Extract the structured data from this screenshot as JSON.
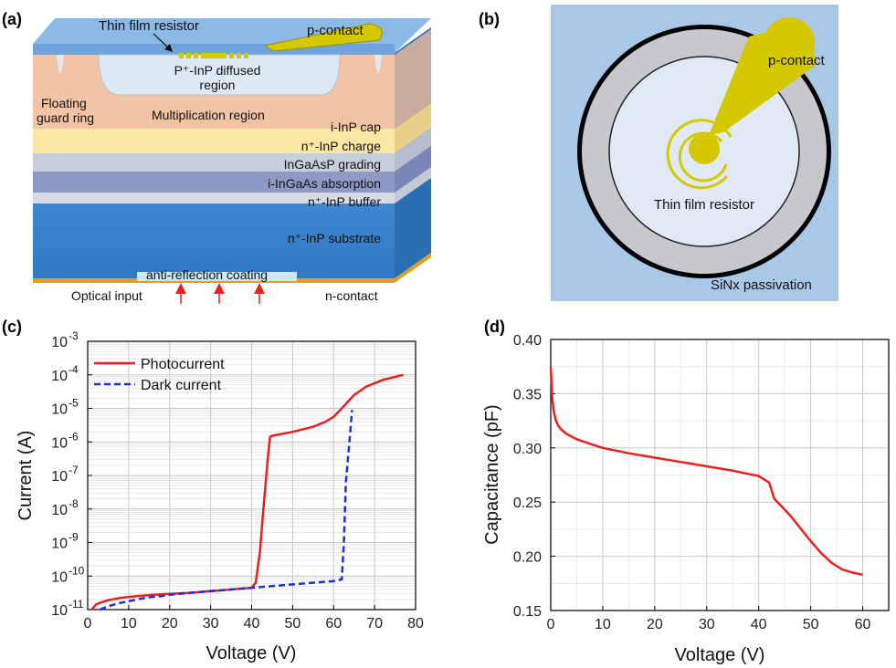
{
  "panels": {
    "a": "(a)",
    "b": "(b)",
    "c": "(c)",
    "d": "(d)"
  },
  "device_a": {
    "thin_film_resistor": "Thin film resistor",
    "p_contact": "p-contact",
    "diffused_region_1": "P⁺-InP diffused",
    "diffused_region_2": "region",
    "floating_guard_1": "Floating",
    "floating_guard_2": "guard ring",
    "multiplication": "Multiplication region",
    "cap": "i-InP cap",
    "charge": "n⁺-InP charge",
    "grading": "InGaAsP grading",
    "absorption": "i-InGaAs absorption",
    "buffer": "n⁺-InP buffer",
    "substrate": "n⁺-InP substrate",
    "arc": "anti-reflection coating",
    "optical_input": "Optical input",
    "n_contact": "n-contact"
  },
  "device_b": {
    "p_contact": "p-contact",
    "thin_film_resistor": "Thin film resistor",
    "passivation": "SiNx passivation"
  },
  "colors": {
    "photocurrent": "#e8201e",
    "dark": "#1f2ed8",
    "capacitance": "#e8201e",
    "contact": "#d4c800",
    "sky": "#a9c8e8"
  },
  "chart_data": [
    {
      "type": "line",
      "panel": "(c)",
      "xlabel": "Voltage (V)",
      "ylabel": "Current (A)",
      "yscale": "log",
      "xlim": [
        0,
        80
      ],
      "ylim_exp": [
        -11,
        -3
      ],
      "x_ticks": [
        "0",
        "10",
        "20",
        "30",
        "40",
        "50",
        "60",
        "70",
        "80"
      ],
      "y_ticks": [
        {
          "base": "10",
          "exp": "-11"
        },
        {
          "base": "10",
          "exp": "-10"
        },
        {
          "base": "10",
          "exp": "-9"
        },
        {
          "base": "10",
          "exp": "-8"
        },
        {
          "base": "10",
          "exp": "-7"
        },
        {
          "base": "10",
          "exp": "-6"
        },
        {
          "base": "10",
          "exp": "-5"
        },
        {
          "base": "10",
          "exp": "-4"
        },
        {
          "base": "10",
          "exp": "-3"
        }
      ],
      "legend": {
        "position": "top-left",
        "entries": [
          "Photocurrent",
          "Dark current"
        ]
      },
      "series": [
        {
          "name": "Photocurrent",
          "style": "solid",
          "x": [
            1.0,
            2,
            3,
            5,
            8,
            12,
            16,
            20,
            25,
            30,
            35,
            40,
            41,
            42,
            43,
            44,
            44.5,
            45,
            50,
            55,
            58,
            60,
            62,
            65,
            68,
            72,
            77
          ],
          "log10_y": [
            -11.0,
            -10.85,
            -10.8,
            -10.72,
            -10.65,
            -10.6,
            -10.56,
            -10.53,
            -10.5,
            -10.45,
            -10.4,
            -10.35,
            -10.2,
            -9.3,
            -7.8,
            -6.4,
            -5.85,
            -5.82,
            -5.7,
            -5.55,
            -5.4,
            -5.25,
            -5.0,
            -4.6,
            -4.35,
            -4.15,
            -4.0
          ]
        },
        {
          "name": "Dark current",
          "style": "dashed",
          "x": [
            3,
            5,
            8,
            10,
            12,
            14,
            16,
            18,
            20,
            25,
            30,
            35,
            40,
            45,
            50,
            55,
            60,
            62,
            62.5,
            63,
            64,
            64.5
          ],
          "log10_y": [
            -11.0,
            -10.9,
            -10.8,
            -10.75,
            -10.7,
            -10.65,
            -10.62,
            -10.6,
            -10.56,
            -10.5,
            -10.45,
            -10.4,
            -10.35,
            -10.3,
            -10.25,
            -10.2,
            -10.15,
            -10.1,
            -9.0,
            -7.2,
            -5.8,
            -5.05
          ]
        }
      ]
    },
    {
      "type": "line",
      "panel": "(d)",
      "xlabel": "Voltage (V)",
      "ylabel": "Capacitance (pF)",
      "xlim": [
        0,
        65
      ],
      "ylim": [
        0.15,
        0.4
      ],
      "x_ticks": [
        "0",
        "10",
        "20",
        "30",
        "40",
        "50",
        "60"
      ],
      "y_ticks": [
        "0.15",
        "0.20",
        "0.25",
        "0.30",
        "0.35",
        "0.40"
      ],
      "series": [
        {
          "name": "Capacitance",
          "x": [
            0.0,
            0.3,
            0.6,
            1,
            1.5,
            2,
            3,
            5,
            8,
            10,
            15,
            20,
            25,
            30,
            35,
            38,
            40,
            42,
            43,
            44,
            46,
            48,
            50,
            52,
            54,
            56,
            58,
            60
          ],
          "y": [
            0.375,
            0.345,
            0.333,
            0.325,
            0.32,
            0.317,
            0.313,
            0.308,
            0.303,
            0.3,
            0.295,
            0.291,
            0.287,
            0.283,
            0.279,
            0.276,
            0.274,
            0.268,
            0.253,
            0.248,
            0.238,
            0.226,
            0.214,
            0.203,
            0.194,
            0.188,
            0.185,
            0.183
          ]
        }
      ]
    }
  ]
}
